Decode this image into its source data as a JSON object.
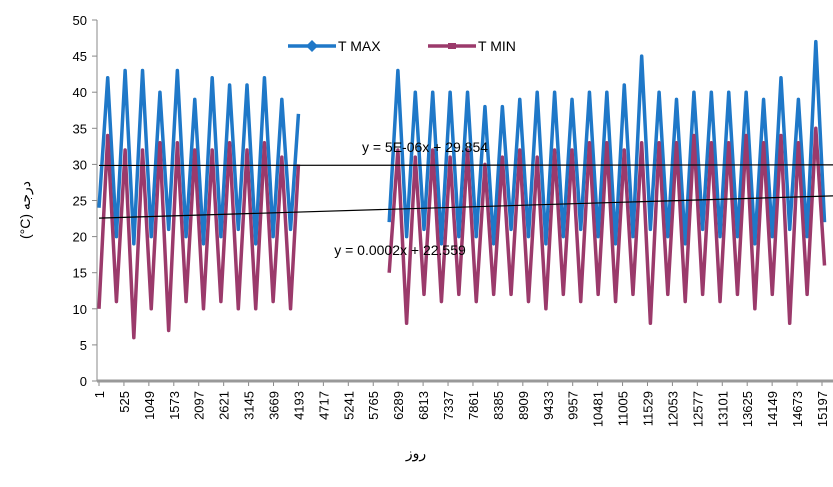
{
  "chart_data": {
    "type": "line",
    "y_label": "(°C) درجه",
    "x_label": "روز",
    "x": [
      1,
      184,
      367,
      550,
      733,
      916,
      1099,
      1282,
      1465,
      1648,
      1831,
      2014,
      2197,
      2380,
      2563,
      2746,
      2929,
      3112,
      3295,
      3478,
      3661,
      3844,
      4027,
      4193,
      5200,
      6100,
      6283,
      6466,
      6649,
      6832,
      7015,
      7198,
      7381,
      7564,
      7747,
      7930,
      8113,
      8296,
      8479,
      8662,
      8845,
      9028,
      9211,
      9394,
      9577,
      9760,
      9943,
      10126,
      10309,
      10492,
      10675,
      10858,
      11041,
      11224,
      11407,
      11590,
      11773,
      11956,
      12139,
      12322,
      12505,
      12688,
      12871,
      13054,
      13237,
      13420,
      13603,
      13786,
      13969,
      14152,
      14335,
      14518,
      14701,
      14884,
      15067,
      15250
    ],
    "series": [
      {
        "name": "T MAX",
        "color": "#1f78c8",
        "values": [
          24,
          42,
          20,
          43,
          19,
          43,
          20,
          40,
          21,
          43,
          20,
          39,
          19,
          42,
          20,
          41,
          21,
          41,
          19,
          42,
          20,
          39,
          21,
          37,
          null,
          22,
          43,
          20,
          40,
          21,
          40,
          19,
          40,
          20,
          40,
          20,
          38,
          19,
          38,
          21,
          39,
          20,
          40,
          19,
          40,
          20,
          39,
          21,
          40,
          20,
          40,
          19,
          41,
          20,
          45,
          21,
          40,
          20,
          39,
          19,
          40,
          21,
          40,
          20,
          40,
          20,
          40,
          19,
          39,
          20,
          42,
          21,
          39,
          20,
          47,
          22
        ]
      },
      {
        "name": "T MIN",
        "color": "#9b3a6b",
        "values": [
          10,
          34,
          11,
          32,
          6,
          32,
          10,
          33,
          7,
          33,
          11,
          32,
          10,
          32,
          11,
          33,
          10,
          32,
          10,
          33,
          11,
          31,
          10,
          30,
          null,
          15,
          32,
          8,
          31,
          12,
          32,
          11,
          31,
          12,
          32,
          11,
          30,
          12,
          31,
          12,
          32,
          11,
          31,
          10,
          32,
          12,
          32,
          11,
          33,
          12,
          33,
          11,
          32,
          12,
          33,
          8,
          33,
          12,
          33,
          11,
          34,
          12,
          33,
          11,
          33,
          12,
          34,
          10,
          33,
          12,
          34,
          8,
          33,
          12,
          35,
          16
        ]
      }
    ],
    "trendlines": [
      {
        "label": "y = 5E-06x + 29.854",
        "slope": 5e-06,
        "intercept": 29.854
      },
      {
        "label": "y = 0.0002x + 22.559",
        "slope": 0.0002,
        "intercept": 22.559
      }
    ],
    "xlim": [
      1,
      15430
    ],
    "xticks": [
      1,
      525,
      1049,
      1573,
      2097,
      2621,
      3145,
      3669,
      4193,
      4717,
      5241,
      5765,
      6289,
      6813,
      7337,
      7861,
      8385,
      8909,
      9433,
      9957,
      10481,
      11005,
      11529,
      12053,
      12577,
      13101,
      13625,
      14149,
      14673,
      15197
    ],
    "ylim": [
      0,
      50
    ],
    "yticks": [
      0,
      5,
      10,
      15,
      20,
      25,
      30,
      35,
      40,
      45,
      50
    ],
    "legend": "top"
  }
}
